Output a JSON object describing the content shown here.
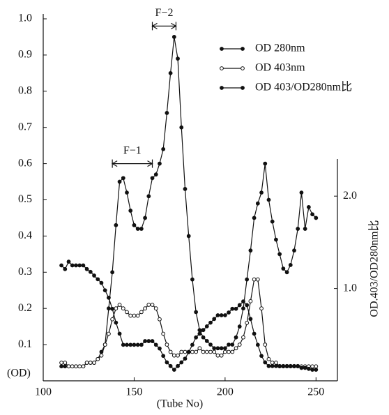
{
  "chart_data": {
    "type": "line",
    "x": [
      110,
      112,
      114,
      116,
      118,
      120,
      122,
      124,
      126,
      128,
      130,
      132,
      134,
      136,
      138,
      140,
      142,
      144,
      146,
      148,
      150,
      152,
      154,
      156,
      158,
      160,
      162,
      164,
      166,
      168,
      170,
      172,
      174,
      176,
      178,
      180,
      182,
      184,
      186,
      188,
      190,
      192,
      194,
      196,
      198,
      200,
      202,
      204,
      206,
      208,
      210,
      212,
      214,
      216,
      218,
      220,
      222,
      224,
      226,
      228,
      230,
      232,
      234,
      236,
      238,
      240,
      242,
      244,
      246,
      248,
      250
    ],
    "series": [
      {
        "name": "OD 280nm",
        "color": "#111111",
        "marker": "filled",
        "values": [
          0.04,
          0.04,
          0.04,
          0.04,
          0.04,
          0.04,
          0.04,
          0.05,
          0.05,
          0.05,
          0.06,
          0.08,
          0.1,
          0.2,
          0.3,
          0.43,
          0.55,
          0.56,
          0.52,
          0.47,
          0.43,
          0.42,
          0.42,
          0.45,
          0.51,
          0.56,
          0.57,
          0.6,
          0.64,
          0.74,
          0.85,
          0.95,
          0.89,
          0.7,
          0.53,
          0.4,
          0.28,
          0.19,
          0.14,
          0.12,
          0.11,
          0.1,
          0.09,
          0.09,
          0.09,
          0.09,
          0.1,
          0.1,
          0.12,
          0.15,
          0.2,
          0.28,
          0.36,
          0.45,
          0.49,
          0.52,
          0.6,
          0.5,
          0.44,
          0.39,
          0.35,
          0.31,
          0.3,
          0.32,
          0.36,
          0.42,
          0.52,
          0.42,
          0.48,
          0.46,
          0.45
        ]
      },
      {
        "name": "OD 403nm",
        "color": "#111111",
        "marker": "open",
        "values": [
          0.05,
          0.05,
          0.04,
          0.04,
          0.04,
          0.04,
          0.04,
          0.05,
          0.05,
          0.05,
          0.06,
          0.07,
          0.1,
          0.13,
          0.17,
          0.2,
          0.21,
          0.2,
          0.19,
          0.18,
          0.18,
          0.18,
          0.19,
          0.2,
          0.21,
          0.21,
          0.2,
          0.17,
          0.13,
          0.1,
          0.08,
          0.07,
          0.07,
          0.08,
          0.08,
          0.08,
          0.08,
          0.08,
          0.09,
          0.08,
          0.08,
          0.08,
          0.08,
          0.07,
          0.07,
          0.08,
          0.08,
          0.08,
          0.09,
          0.1,
          0.12,
          0.16,
          0.22,
          0.28,
          0.28,
          0.2,
          0.1,
          0.06,
          0.05,
          0.05,
          0.04,
          0.04,
          0.04,
          0.04,
          0.04,
          0.04,
          0.04,
          0.04,
          0.04,
          0.04,
          0.04
        ]
      },
      {
        "name": "OD 403/OD280nm比",
        "color": "#111111",
        "marker": "filled",
        "axis": "y2",
        "values": [
          1.25,
          1.21,
          1.29,
          1.25,
          1.25,
          1.25,
          1.25,
          1.21,
          1.18,
          1.14,
          1.1,
          1.06,
          0.98,
          0.9,
          0.78,
          0.63,
          0.51,
          0.39,
          0.39,
          0.39,
          0.39,
          0.39,
          0.39,
          0.43,
          0.43,
          0.43,
          0.39,
          0.35,
          0.27,
          0.2,
          0.16,
          0.12,
          0.16,
          0.2,
          0.24,
          0.31,
          0.39,
          0.47,
          0.51,
          0.55,
          0.59,
          0.63,
          0.67,
          0.71,
          0.71,
          0.71,
          0.74,
          0.78,
          0.78,
          0.82,
          0.86,
          0.82,
          0.67,
          0.51,
          0.39,
          0.27,
          0.2,
          0.16,
          0.16,
          0.16,
          0.16,
          0.16,
          0.16,
          0.16,
          0.16,
          0.16,
          0.14,
          0.14,
          0.13,
          0.12,
          0.12
        ]
      }
    ],
    "xlim": [
      100,
      261
    ],
    "xticks": [
      100,
      150,
      200,
      250
    ],
    "ylim": [
      0,
      1
    ],
    "yticks": [
      0.1,
      0.2,
      0.3,
      0.4,
      0.5,
      0.6,
      0.7,
      0.8,
      0.9,
      {
        "value": 1,
        "label": "1.0"
      }
    ],
    "y2lim": [
      0,
      3.92
    ],
    "y2ticks": [
      {
        "value": 1,
        "label": "1.0"
      },
      {
        "value": 2,
        "label": "2.0"
      }
    ],
    "xlabel": "(Tube No)",
    "ylabel": "(OD)",
    "y2label": "OD.403/OD280nm比",
    "annotations": [
      {
        "text": "F−1",
        "x": [
          138,
          160
        ],
        "y": 0.6
      },
      {
        "text": "F−2",
        "x": [
          160,
          173
        ],
        "y": 0.98
      }
    ],
    "legend": "upper right"
  }
}
